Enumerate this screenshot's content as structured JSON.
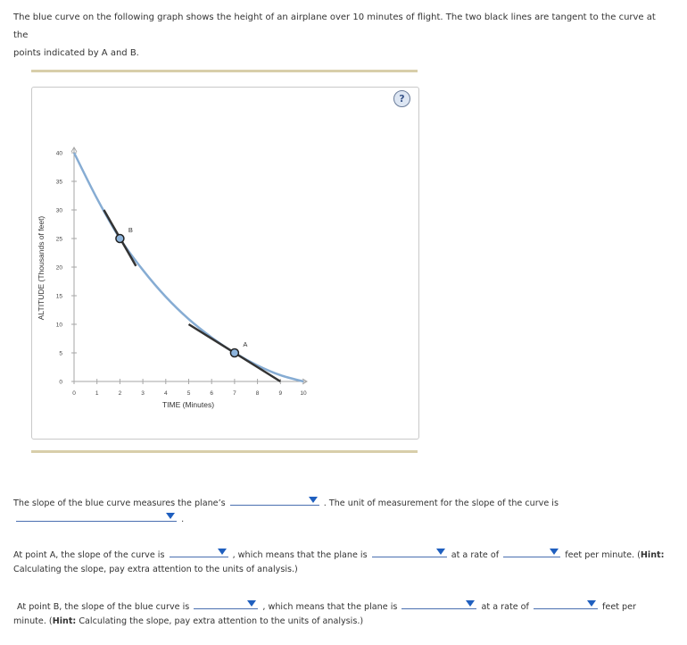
{
  "intro": {
    "line1": "The blue curve on the following graph shows the height of an airplane over 10 minutes of flight. The two black lines are tangent to the curve at the",
    "line2": "points indicated by A and B."
  },
  "help_icon": "?",
  "colors": {
    "curve": "#86acd3",
    "tangent": "#333333",
    "rule": "#d8ceaa",
    "dropdown_arrow": "#1f5fbf"
  },
  "chart_data": {
    "type": "line",
    "xlabel": "TIME (Minutes)",
    "ylabel": "ALTITUDE (Thousands of feet)",
    "xlim": [
      0,
      10
    ],
    "ylim": [
      0,
      40
    ],
    "x_ticks": [
      "0",
      "1",
      "2",
      "3",
      "4",
      "5",
      "6",
      "7",
      "8",
      "9",
      "10"
    ],
    "y_ticks": [
      "0",
      "5",
      "10",
      "15",
      "20",
      "25",
      "30",
      "35",
      "40"
    ],
    "series": [
      {
        "x": [
          0,
          1,
          2,
          3,
          4,
          5,
          6,
          7,
          8,
          9,
          10
        ],
        "y": [
          40,
          32,
          25,
          19.5,
          14.8,
          10.9,
          7.7,
          5,
          2.8,
          1.1,
          0
        ]
      }
    ],
    "points": [
      {
        "label": "B",
        "x": 2,
        "y": 25
      },
      {
        "label": "A",
        "x": 7,
        "y": 5
      }
    ],
    "tangents": [
      {
        "point": "B",
        "x": [
          1.3,
          2.7
        ],
        "y": [
          30,
          20.2
        ]
      },
      {
        "point": "A",
        "x": [
          5,
          9
        ],
        "y": [
          10,
          0
        ]
      }
    ]
  },
  "q1": {
    "before": "The slope of the blue curve measures the plane’s",
    "after": ". The unit of measurement for the slope of the curve is",
    "end": "."
  },
  "q2": {
    "part1": "At point A, the slope of the curve is",
    "part2": ", which means that the plane is",
    "part3": "at a rate of",
    "part4": "feet per minute. (",
    "hint": "Hint:",
    "line2": "Calculating the slope, pay extra attention to the units of analysis.)"
  },
  "q3": {
    "part1": "At point B, the slope of the blue curve is",
    "part2": ", which means that the plane is",
    "part3": "at a rate of",
    "part4": "feet per",
    "line2_a": "minute. (",
    "hint": "Hint:",
    "line2_b": "Calculating the slope, pay extra attention to the units of analysis.)"
  }
}
